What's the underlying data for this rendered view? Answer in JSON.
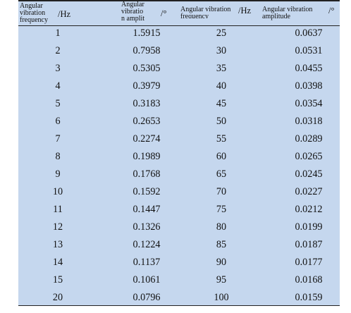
{
  "table": {
    "headers": [
      {
        "words": [
          "Angular",
          "vibration",
          "frequency"
        ],
        "unit": "/Hz"
      },
      {
        "words": [
          "Angular",
          "vibratio",
          "n amplit"
        ],
        "unit": "/°"
      },
      {
        "words": [
          "Angular vibration",
          "frequency"
        ],
        "unit": "/Hz"
      },
      {
        "words": [
          "Angular vibration",
          "amplitude"
        ],
        "unit": "/°"
      }
    ],
    "rows": [
      [
        "1",
        "1.5915",
        "25",
        "0.0637"
      ],
      [
        "2",
        "0.7958",
        "30",
        "0.0531"
      ],
      [
        "3",
        "0.5305",
        "35",
        "0.0455"
      ],
      [
        "4",
        "0.3979",
        "40",
        "0.0398"
      ],
      [
        "5",
        "0.3183",
        "45",
        "0.0354"
      ],
      [
        "6",
        "0.2653",
        "50",
        "0.0318"
      ],
      [
        "7",
        "0.2274",
        "55",
        "0.0289"
      ],
      [
        "8",
        "0.1989",
        "60",
        "0.0265"
      ],
      [
        "9",
        "0.1768",
        "65",
        "0.0245"
      ],
      [
        "10",
        "0.1592",
        "70",
        "0.0227"
      ],
      [
        "11",
        "0.1447",
        "75",
        "0.0212"
      ],
      [
        "12",
        "0.1326",
        "80",
        "0.0199"
      ],
      [
        "13",
        "0.1224",
        "85",
        "0.0187"
      ],
      [
        "14",
        "0.1137",
        "90",
        "0.0177"
      ],
      [
        "15",
        "0.1061",
        "95",
        "0.0168"
      ],
      [
        "20",
        "0.0796",
        "100",
        "0.0159"
      ]
    ]
  }
}
